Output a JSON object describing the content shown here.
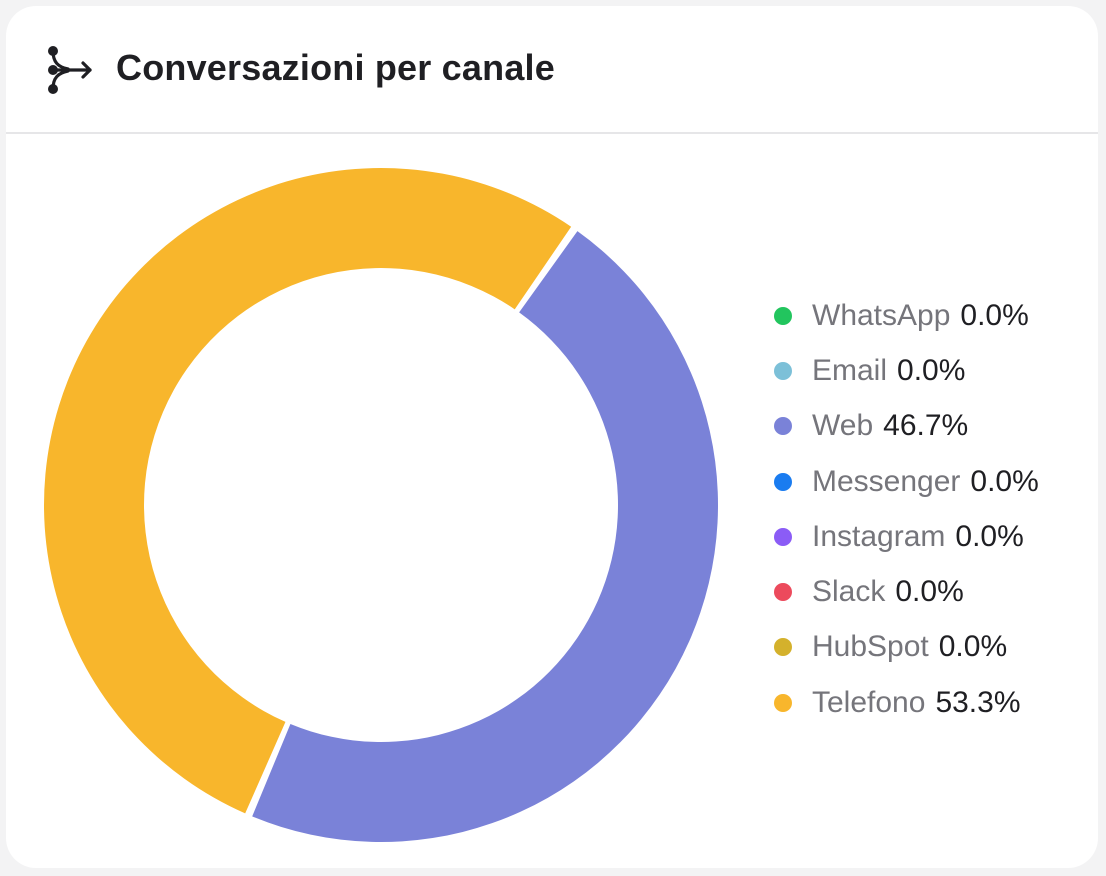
{
  "header": {
    "title": "Conversazioni per canale",
    "icon": "channels-branch-arrow-icon"
  },
  "chart_data": {
    "type": "pie",
    "variant": "donut",
    "unit": "%",
    "legend_position": "right",
    "categories": [
      "WhatsApp",
      "Email",
      "Web",
      "Messenger",
      "Instagram",
      "Slack",
      "HubSpot",
      "Telefono"
    ],
    "values": [
      0.0,
      0.0,
      46.7,
      0.0,
      0.0,
      0.0,
      0.0,
      53.3
    ],
    "labels": [
      "0.0%",
      "0.0%",
      "46.7%",
      "0.0%",
      "0.0%",
      "0.0%",
      "0.0%",
      "53.3%"
    ],
    "colors": [
      "#22c55e",
      "#7cc0d8",
      "#7a82d8",
      "#1a7cf0",
      "#8b5cf6",
      "#ec4a5c",
      "#d4b12c",
      "#f8b62c"
    ]
  }
}
